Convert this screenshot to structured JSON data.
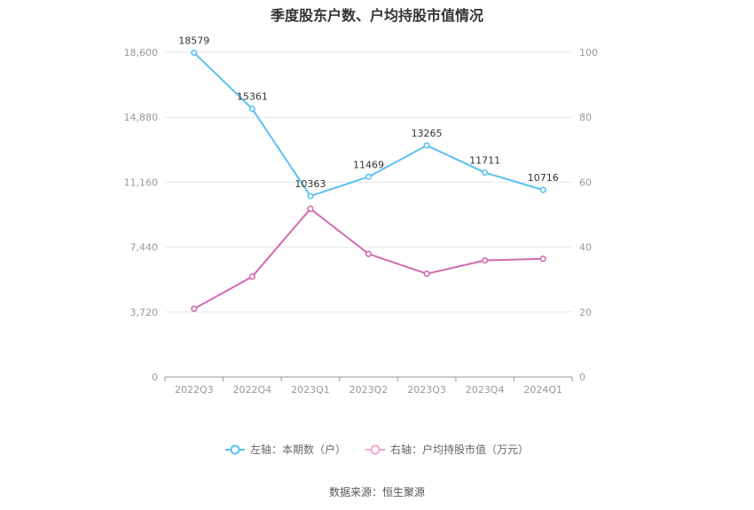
{
  "chart_data": {
    "type": "line",
    "title": "季度股东户数、户均持股市值情况",
    "categories": [
      "2022Q3",
      "2022Q4",
      "2023Q1",
      "2023Q2",
      "2023Q3",
      "2023Q4",
      "2024Q1"
    ],
    "series": [
      {
        "name": "左轴：本期数（户）",
        "axis": "left",
        "color": "#5bc0f0",
        "values": [
          18579,
          15361,
          10363,
          11469,
          13265,
          11711,
          10716
        ],
        "labels": [
          "18579",
          "15361",
          "10363",
          "11469",
          "13265",
          "11711",
          "10716"
        ]
      },
      {
        "name": "右轴：户均持股市值（万元）",
        "axis": "right",
        "color": "#d36aae",
        "values": [
          21.0,
          30.9,
          51.8,
          37.9,
          31.8,
          35.9,
          36.4
        ]
      }
    ],
    "left_axis": {
      "min": 0,
      "max": 18600,
      "ticks": [
        "0",
        "3,720",
        "7,440",
        "11,160",
        "14,880",
        "18,600"
      ],
      "tick_values": [
        0,
        3720,
        7440,
        11160,
        14880,
        18600
      ]
    },
    "right_axis": {
      "min": 0,
      "max": 100,
      "ticks": [
        "0",
        "20",
        "40",
        "60",
        "80",
        "100"
      ],
      "tick_values": [
        0,
        20,
        40,
        60,
        80,
        100
      ]
    },
    "grid": true,
    "legend_position": "bottom"
  },
  "source": "数据来源：恒生聚源"
}
